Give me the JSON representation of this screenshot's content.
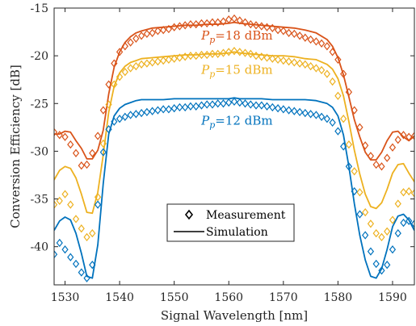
{
  "chart_data": {
    "type": "scatter",
    "title": "",
    "xlabel": "Signal Wavelength [nm]",
    "ylabel": "Conversion Efficiency [dB]",
    "xlim": [
      1528,
      1594
    ],
    "ylim": [
      -44,
      -15
    ],
    "xticks": [
      1530,
      1540,
      1550,
      1560,
      1570,
      1580,
      1590
    ],
    "yticks": [
      -15,
      -20,
      -25,
      -30,
      -35,
      -40
    ],
    "grid": false,
    "legend": {
      "position": "lower-center",
      "entries": [
        {
          "label": "Measurement",
          "marker": "diamond"
        },
        {
          "label": "Simulation",
          "marker": "line"
        }
      ]
    },
    "annotations": [
      {
        "prefix": "P",
        "sub": "p",
        "text": "=18 dBm",
        "series": "Pp=18 dBm"
      },
      {
        "prefix": "P",
        "sub": "p",
        "text": "=15 dBm",
        "series": "Pp=15 dBm"
      },
      {
        "prefix": "P",
        "sub": "p",
        "text": "=12 dBm",
        "series": "Pp=12 dBm"
      }
    ],
    "series": [
      {
        "name": "Pp=18 dBm",
        "color": "#D95319",
        "simulation": {
          "x": [
            1528,
            1529,
            1530,
            1531,
            1532,
            1533,
            1534,
            1535,
            1536,
            1537,
            1538,
            1539,
            1540,
            1541,
            1542,
            1543,
            1544,
            1546,
            1548,
            1550,
            1552,
            1554,
            1556,
            1558,
            1560,
            1561,
            1562,
            1564,
            1566,
            1568,
            1570,
            1572,
            1574,
            1576,
            1578,
            1579,
            1580,
            1581,
            1582,
            1583,
            1584,
            1585,
            1586,
            1587,
            1588,
            1589,
            1590,
            1591,
            1592,
            1593,
            1594
          ],
          "y": [
            -28.2,
            -28.2,
            -27.9,
            -28.0,
            -28.9,
            -29.7,
            -30.8,
            -30.8,
            -29.9,
            -27.8,
            -24.0,
            -21.2,
            -19.6,
            -18.6,
            -18.0,
            -17.6,
            -17.4,
            -17.1,
            -17.0,
            -16.9,
            -16.8,
            -16.8,
            -16.7,
            -16.7,
            -16.6,
            -16.5,
            -16.6,
            -16.7,
            -16.8,
            -16.9,
            -17.0,
            -17.1,
            -17.3,
            -17.6,
            -18.3,
            -19.0,
            -20.2,
            -22.0,
            -24.3,
            -26.7,
            -28.5,
            -30.1,
            -30.9,
            -30.9,
            -30.1,
            -28.9,
            -28.0,
            -27.9,
            -28.5,
            -28.9,
            -28.4
          ]
        },
        "measurement": {
          "x": [
            1528,
            1529,
            1530,
            1531,
            1532,
            1533,
            1534,
            1535,
            1536,
            1537,
            1538,
            1539,
            1540,
            1541,
            1542,
            1543,
            1544,
            1545,
            1546,
            1547,
            1548,
            1549,
            1550,
            1551,
            1552,
            1553,
            1554,
            1555,
            1556,
            1557,
            1558,
            1559,
            1560,
            1561,
            1562,
            1563,
            1564,
            1565,
            1566,
            1567,
            1568,
            1569,
            1570,
            1571,
            1572,
            1573,
            1574,
            1575,
            1576,
            1577,
            1578,
            1579,
            1580,
            1581,
            1582,
            1583,
            1584,
            1585,
            1586,
            1587,
            1588,
            1589,
            1590,
            1591,
            1592,
            1593,
            1594
          ],
          "y": [
            -28.0,
            -28.3,
            -28.5,
            -29.3,
            -30.2,
            -31.5,
            -31.4,
            -30.2,
            -28.4,
            -25.7,
            -23.0,
            -20.8,
            -19.6,
            -19.0,
            -18.6,
            -18.2,
            -17.9,
            -17.7,
            -17.6,
            -17.4,
            -17.3,
            -17.2,
            -17.0,
            -16.9,
            -16.8,
            -16.7,
            -16.7,
            -16.6,
            -16.6,
            -16.5,
            -16.5,
            -16.4,
            -16.2,
            -16.1,
            -16.3,
            -16.5,
            -16.7,
            -16.8,
            -16.9,
            -17.0,
            -17.1,
            -17.3,
            -17.4,
            -17.6,
            -17.7,
            -17.9,
            -18.1,
            -18.3,
            -18.5,
            -18.7,
            -19.0,
            -19.6,
            -20.4,
            -21.9,
            -23.8,
            -25.7,
            -27.5,
            -29.4,
            -30.5,
            -31.4,
            -31.6,
            -30.7,
            -29.6,
            -28.8,
            -28.3,
            -28.5,
            -28.4
          ]
        }
      },
      {
        "name": "Pp=15 dBm",
        "color": "#EDB120",
        "simulation": {
          "x": [
            1528,
            1529,
            1530,
            1531,
            1532,
            1533,
            1534,
            1535,
            1536,
            1537,
            1538,
            1539,
            1540,
            1541,
            1542,
            1543,
            1544,
            1546,
            1548,
            1550,
            1552,
            1554,
            1556,
            1558,
            1560,
            1561,
            1562,
            1564,
            1566,
            1568,
            1570,
            1572,
            1574,
            1576,
            1578,
            1579,
            1580,
            1581,
            1582,
            1583,
            1584,
            1585,
            1586,
            1587,
            1588,
            1589,
            1590,
            1591,
            1592,
            1593,
            1594
          ],
          "y": [
            -33.0,
            -32.0,
            -31.6,
            -31.8,
            -32.8,
            -34.5,
            -36.4,
            -36.5,
            -34.3,
            -30.4,
            -25.9,
            -23.2,
            -21.8,
            -21.1,
            -20.7,
            -20.5,
            -20.3,
            -20.2,
            -20.1,
            -20.0,
            -19.9,
            -19.9,
            -19.8,
            -19.8,
            -19.7,
            -19.6,
            -19.7,
            -19.8,
            -19.9,
            -20.0,
            -20.0,
            -20.1,
            -20.3,
            -20.4,
            -20.9,
            -21.4,
            -22.4,
            -24.2,
            -26.9,
            -29.9,
            -32.4,
            -34.5,
            -35.8,
            -36.0,
            -35.4,
            -34.0,
            -32.3,
            -31.4,
            -31.3,
            -32.3,
            -33.2
          ]
        },
        "measurement": {
          "x": [
            1528,
            1529,
            1530,
            1531,
            1532,
            1533,
            1534,
            1535,
            1536,
            1537,
            1538,
            1539,
            1540,
            1541,
            1542,
            1543,
            1544,
            1545,
            1546,
            1547,
            1548,
            1549,
            1550,
            1551,
            1552,
            1553,
            1554,
            1555,
            1556,
            1557,
            1558,
            1559,
            1560,
            1561,
            1562,
            1563,
            1564,
            1565,
            1566,
            1567,
            1568,
            1569,
            1570,
            1571,
            1572,
            1573,
            1574,
            1575,
            1576,
            1577,
            1578,
            1579,
            1580,
            1581,
            1582,
            1583,
            1584,
            1585,
            1586,
            1587,
            1588,
            1589,
            1590,
            1591,
            1592,
            1593,
            1594
          ],
          "y": [
            -35.6,
            -35.2,
            -34.5,
            -35.6,
            -37.1,
            -38.1,
            -39.0,
            -38.6,
            -34.8,
            -29.2,
            -25.1,
            -23.0,
            -22.2,
            -21.7,
            -21.3,
            -21.1,
            -20.9,
            -20.8,
            -20.7,
            -20.6,
            -20.5,
            -20.4,
            -20.3,
            -20.2,
            -20.1,
            -20.0,
            -20.0,
            -19.9,
            -19.9,
            -19.8,
            -19.8,
            -19.7,
            -19.6,
            -19.5,
            -19.6,
            -19.7,
            -19.8,
            -20.0,
            -20.1,
            -20.2,
            -20.3,
            -20.4,
            -20.5,
            -20.6,
            -20.7,
            -20.8,
            -20.9,
            -21.1,
            -21.3,
            -21.5,
            -21.9,
            -22.7,
            -24.2,
            -26.6,
            -29.3,
            -32.1,
            -34.3,
            -36.4,
            -37.6,
            -38.6,
            -39.0,
            -38.4,
            -37.2,
            -35.5,
            -34.3,
            -34.2,
            -34.4
          ]
        }
      },
      {
        "name": "Pp=12 dBm",
        "color": "#0072BD",
        "simulation": {
          "x": [
            1528,
            1529,
            1530,
            1531,
            1532,
            1533,
            1534,
            1535,
            1536,
            1537,
            1538,
            1539,
            1540,
            1541,
            1542,
            1543,
            1544,
            1546,
            1548,
            1550,
            1552,
            1554,
            1556,
            1558,
            1560,
            1561,
            1562,
            1564,
            1566,
            1568,
            1570,
            1572,
            1574,
            1576,
            1578,
            1579,
            1580,
            1581,
            1582,
            1583,
            1584,
            1585,
            1586,
            1587,
            1588,
            1589,
            1590,
            1591,
            1592,
            1593,
            1594
          ],
          "y": [
            -38.3,
            -37.3,
            -36.9,
            -37.2,
            -38.6,
            -40.7,
            -43.1,
            -43.3,
            -39.8,
            -33.4,
            -28.2,
            -26.3,
            -25.5,
            -25.1,
            -24.9,
            -24.7,
            -24.6,
            -24.6,
            -24.6,
            -24.5,
            -24.5,
            -24.5,
            -24.5,
            -24.5,
            -24.5,
            -24.4,
            -24.5,
            -24.5,
            -24.5,
            -24.6,
            -24.6,
            -24.6,
            -24.6,
            -24.7,
            -25.0,
            -25.4,
            -26.3,
            -28.3,
            -31.6,
            -35.5,
            -38.8,
            -41.4,
            -43.1,
            -43.3,
            -42.3,
            -40.3,
            -37.9,
            -36.8,
            -36.6,
            -37.2,
            -38.3
          ]
        },
        "measurement": {
          "x": [
            1528,
            1529,
            1530,
            1531,
            1532,
            1533,
            1534,
            1535,
            1536,
            1537,
            1538,
            1539,
            1540,
            1541,
            1542,
            1543,
            1544,
            1545,
            1546,
            1547,
            1548,
            1549,
            1550,
            1551,
            1552,
            1553,
            1554,
            1555,
            1556,
            1557,
            1558,
            1559,
            1560,
            1561,
            1562,
            1563,
            1564,
            1565,
            1566,
            1567,
            1568,
            1569,
            1570,
            1571,
            1572,
            1573,
            1574,
            1575,
            1576,
            1577,
            1578,
            1579,
            1580,
            1581,
            1582,
            1583,
            1584,
            1585,
            1586,
            1587,
            1588,
            1589,
            1590,
            1591,
            1592,
            1593,
            1594
          ],
          "y": [
            -40.8,
            -39.6,
            -40.3,
            -41.1,
            -41.8,
            -42.7,
            -43.3,
            -41.9,
            -35.6,
            -30.1,
            -27.7,
            -26.9,
            -26.6,
            -26.4,
            -26.2,
            -26.1,
            -26.0,
            -25.9,
            -25.8,
            -25.7,
            -25.6,
            -25.6,
            -25.5,
            -25.4,
            -25.4,
            -25.3,
            -25.3,
            -25.2,
            -25.1,
            -25.1,
            -25.0,
            -25.0,
            -24.9,
            -24.8,
            -24.9,
            -25.0,
            -25.1,
            -25.2,
            -25.2,
            -25.3,
            -25.4,
            -25.5,
            -25.6,
            -25.7,
            -25.8,
            -25.9,
            -26.0,
            -26.1,
            -26.2,
            -26.4,
            -26.6,
            -27.0,
            -27.9,
            -29.5,
            -31.6,
            -34.2,
            -36.6,
            -38.8,
            -40.5,
            -41.8,
            -42.5,
            -41.9,
            -40.3,
            -38.6,
            -37.5,
            -37.3,
            -37.6
          ]
        }
      }
    ]
  }
}
